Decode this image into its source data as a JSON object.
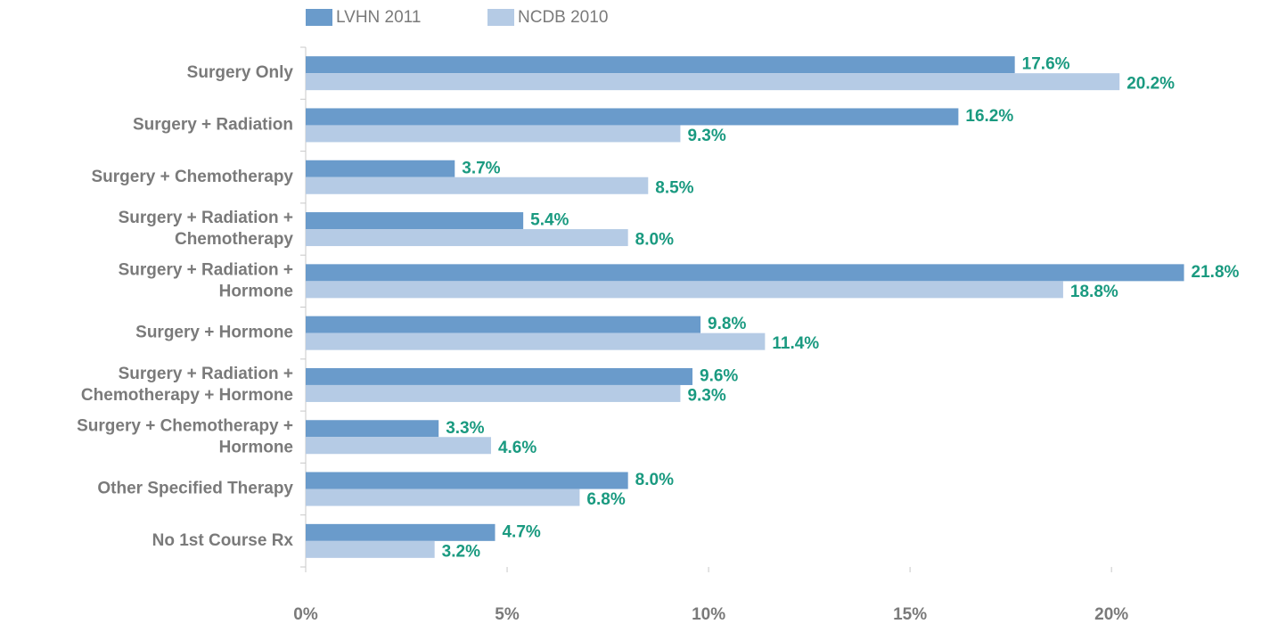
{
  "chart_data": {
    "type": "hbar",
    "categories": [
      [
        "Surgery Only"
      ],
      [
        "Surgery + Radiation"
      ],
      [
        "Surgery + Chemotherapy"
      ],
      [
        "Surgery + Radiation +",
        "Chemotherapy"
      ],
      [
        "Surgery + Radiation +",
        "Hormone"
      ],
      [
        "Surgery + Hormone"
      ],
      [
        "Surgery + Radiation +",
        "Chemotherapy + Hormone"
      ],
      [
        "Surgery + Chemotherapy +",
        "Hormone"
      ],
      [
        "Other Specified Therapy"
      ],
      [
        "No 1st Course Rx"
      ]
    ],
    "series": [
      {
        "name": "LVHN 2011",
        "color": "#6a9bcb",
        "values": [
          17.6,
          16.2,
          3.7,
          5.4,
          21.8,
          9.8,
          9.6,
          3.3,
          8.0,
          4.7
        ],
        "value_labels": [
          "17.6%",
          "16.2%",
          "3.7%",
          "5.4%",
          "21.8%",
          "9.8%",
          "9.6%",
          "3.3%",
          "8.0%",
          "4.7%"
        ]
      },
      {
        "name": "NCDB 2010",
        "color": "#b5cbe5",
        "values": [
          20.2,
          9.3,
          8.5,
          8.0,
          18.8,
          11.4,
          9.3,
          4.6,
          6.8,
          3.2
        ],
        "value_labels": [
          "20.2%",
          "9.3%",
          "8.5%",
          "8.0%",
          "18.8%",
          "11.4%",
          "9.3%",
          "4.6%",
          "6.8%",
          "3.2%"
        ]
      }
    ],
    "xlim": [
      0,
      24
    ],
    "xticks": [
      {
        "value": 0,
        "label": "0%"
      },
      {
        "value": 5,
        "label": "5%"
      },
      {
        "value": 10,
        "label": "10%"
      },
      {
        "value": 15,
        "label": "15%"
      },
      {
        "value": 20,
        "label": "20%"
      }
    ],
    "grid": false,
    "legend": "top",
    "label_color": "#1a9a80"
  }
}
